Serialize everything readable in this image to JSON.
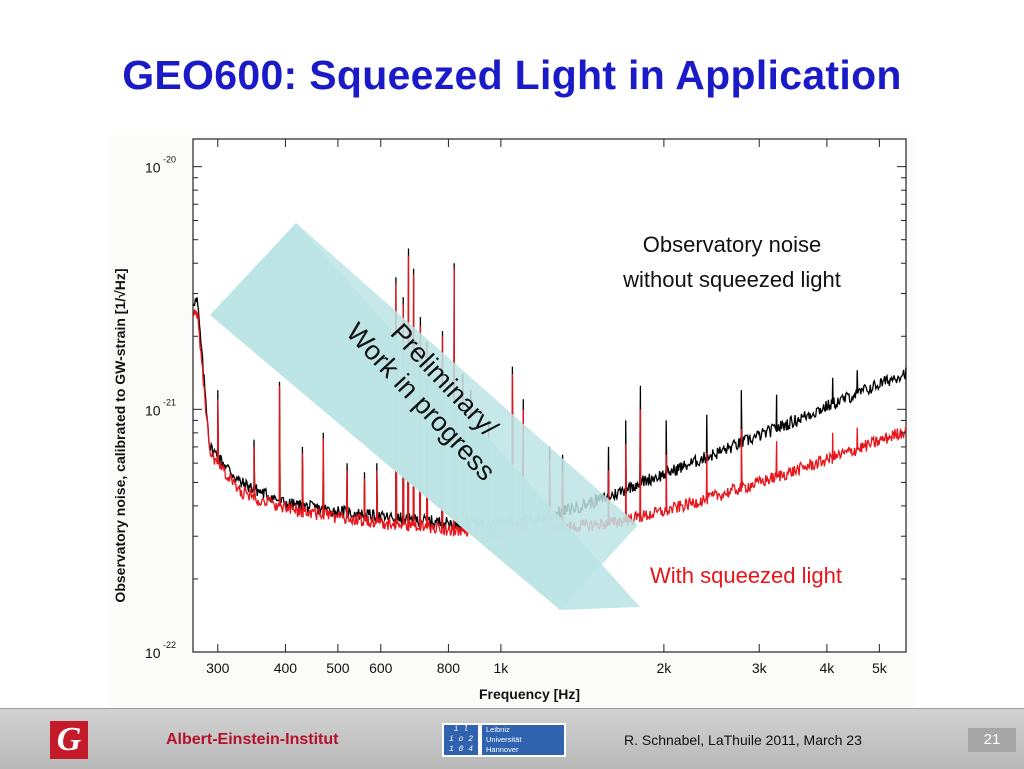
{
  "slide": {
    "title": "GEO600: Squeezed Light in Application"
  },
  "chart_data": {
    "type": "line",
    "title": "",
    "xlabel": "Frequency [Hz]",
    "ylabel": "Observatory noise, calibrated to GW-strain  [1/√Hz]",
    "x_scale": "log",
    "y_scale": "log",
    "xlim": [
      270,
      5600
    ],
    "ylim": [
      1e-22,
      1.3e-20
    ],
    "x_ticks": [
      {
        "value": 300,
        "label": "300"
      },
      {
        "value": 400,
        "label": "400"
      },
      {
        "value": 500,
        "label": "500"
      },
      {
        "value": 600,
        "label": "600"
      },
      {
        "value": 800,
        "label": "800"
      },
      {
        "value": 1000,
        "label": "1k"
      },
      {
        "value": 2000,
        "label": "2k"
      },
      {
        "value": 3000,
        "label": "3k"
      },
      {
        "value": 4000,
        "label": "4k"
      },
      {
        "value": 5000,
        "label": "5k"
      }
    ],
    "y_ticks": [
      {
        "value": 1e-20,
        "base": "10",
        "exp": "-20"
      },
      {
        "value": 1e-21,
        "base": "10",
        "exp": "-21"
      },
      {
        "value": 1e-22,
        "base": "10",
        "exp": "-22"
      }
    ],
    "series": [
      {
        "annotation": "Observatory noise\nwithout squeezed light",
        "color": "#000000",
        "baseline": [
          [
            275,
            2.8e-21
          ],
          [
            290,
            7e-22
          ],
          [
            330,
            5e-22
          ],
          [
            400,
            4.1e-22
          ],
          [
            500,
            3.8e-22
          ],
          [
            600,
            3.6e-22
          ],
          [
            700,
            3.5e-22
          ],
          [
            800,
            3.4e-22
          ],
          [
            900,
            3.4e-22
          ],
          [
            1000,
            3.4e-22
          ],
          [
            1200,
            3.6e-22
          ],
          [
            1400,
            4e-22
          ],
          [
            1600,
            4.4e-22
          ],
          [
            1800,
            5e-22
          ],
          [
            2000,
            5.4e-22
          ],
          [
            2500,
            6.6e-22
          ],
          [
            3000,
            7.8e-22
          ],
          [
            3500,
            9e-22
          ],
          [
            4000,
            1.03e-21
          ],
          [
            4500,
            1.15e-21
          ],
          [
            5000,
            1.27e-21
          ],
          [
            5600,
            1.42e-21
          ]
        ],
        "peaks": [
          [
            300,
            1.2e-21
          ],
          [
            350,
            7.5e-22
          ],
          [
            390,
            1.3e-21
          ],
          [
            430,
            7e-22
          ],
          [
            470,
            8e-22
          ],
          [
            520,
            6e-22
          ],
          [
            560,
            5.5e-22
          ],
          [
            590,
            6e-22
          ],
          [
            640,
            3.5e-21
          ],
          [
            660,
            2.9e-21
          ],
          [
            675,
            4.6e-21
          ],
          [
            690,
            3.8e-21
          ],
          [
            710,
            2.4e-21
          ],
          [
            730,
            1.9e-21
          ],
          [
            780,
            2.1e-21
          ],
          [
            820,
            4e-21
          ],
          [
            850,
            1.4e-21
          ],
          [
            880,
            1.2e-21
          ],
          [
            950,
            9e-22
          ],
          [
            1050,
            1.5e-21
          ],
          [
            1100,
            1.1e-21
          ],
          [
            1230,
            7e-22
          ],
          [
            1300,
            6.5e-22
          ],
          [
            1580,
            7e-22
          ],
          [
            1700,
            9e-22
          ],
          [
            1810,
            1.25e-21
          ],
          [
            2020,
            9e-22
          ],
          [
            2400,
            9.5e-22
          ],
          [
            2780,
            1.2e-21
          ],
          [
            3230,
            1.15e-21
          ],
          [
            4100,
            1.35e-21
          ],
          [
            4550,
            1.45e-21
          ]
        ]
      },
      {
        "annotation": "With squeezed light",
        "color": "#e8141a",
        "baseline": [
          [
            275,
            2.5e-21
          ],
          [
            290,
            6.5e-22
          ],
          [
            330,
            4.6e-22
          ],
          [
            400,
            3.9e-22
          ],
          [
            500,
            3.6e-22
          ],
          [
            600,
            3.4e-22
          ],
          [
            700,
            3.3e-22
          ],
          [
            800,
            3.2e-22
          ],
          [
            900,
            3.1e-22
          ],
          [
            1000,
            3.1e-22
          ],
          [
            1200,
            3.2e-22
          ],
          [
            1400,
            3.3e-22
          ],
          [
            1600,
            3.4e-22
          ],
          [
            1800,
            3.6e-22
          ],
          [
            2000,
            3.8e-22
          ],
          [
            2500,
            4.4e-22
          ],
          [
            3000,
            5e-22
          ],
          [
            3500,
            5.6e-22
          ],
          [
            4000,
            6.2e-22
          ],
          [
            4500,
            6.8e-22
          ],
          [
            5000,
            7.4e-22
          ],
          [
            5600,
            8.2e-22
          ]
        ],
        "peaks": [
          [
            300,
            1.1e-21
          ],
          [
            350,
            7e-22
          ],
          [
            390,
            1.25e-21
          ],
          [
            430,
            6.6e-22
          ],
          [
            470,
            7.6e-22
          ],
          [
            520,
            5.6e-22
          ],
          [
            560,
            5.2e-22
          ],
          [
            590,
            5.6e-22
          ],
          [
            640,
            3.3e-21
          ],
          [
            660,
            2.7e-21
          ],
          [
            675,
            4.3e-21
          ],
          [
            690,
            3.6e-21
          ],
          [
            710,
            2.2e-21
          ],
          [
            730,
            1.8e-21
          ],
          [
            780,
            2e-21
          ],
          [
            820,
            3.8e-21
          ],
          [
            850,
            1.3e-21
          ],
          [
            880,
            1.1e-21
          ],
          [
            950,
            8.4e-22
          ],
          [
            1050,
            1.4e-21
          ],
          [
            1100,
            1e-21
          ],
          [
            1230,
            6.2e-22
          ],
          [
            1300,
            5.6e-22
          ],
          [
            1580,
            5.6e-22
          ],
          [
            1700,
            7.2e-22
          ],
          [
            1810,
            1e-21
          ],
          [
            2020,
            6.5e-22
          ],
          [
            2400,
            6.6e-22
          ],
          [
            2780,
            8.3e-22
          ],
          [
            3230,
            7.4e-22
          ],
          [
            4100,
            8e-22
          ],
          [
            4550,
            8.4e-22
          ]
        ]
      }
    ],
    "banner": [
      "Preliminary/",
      "Work in progress"
    ],
    "banner_color": "#bde4e5",
    "grid": false,
    "legend": "none (inline annotations)"
  },
  "footer": {
    "logo_glyph": "G",
    "institute": "Albert‑Einstein‑Institut",
    "university_mark": [
      "i  l",
      "i o  2",
      "1 0  4"
    ],
    "university_name": [
      "Leibniz",
      "Universität",
      "Hannover"
    ],
    "credit": "R. Schnabel, LaThuile 2011, March 23",
    "page_number": "21"
  },
  "colors": {
    "title": "#1a1ac8",
    "institute_text": "#b3122a",
    "footer_bg": "#c4c4c4",
    "uni_blue": "#2f63b0"
  }
}
